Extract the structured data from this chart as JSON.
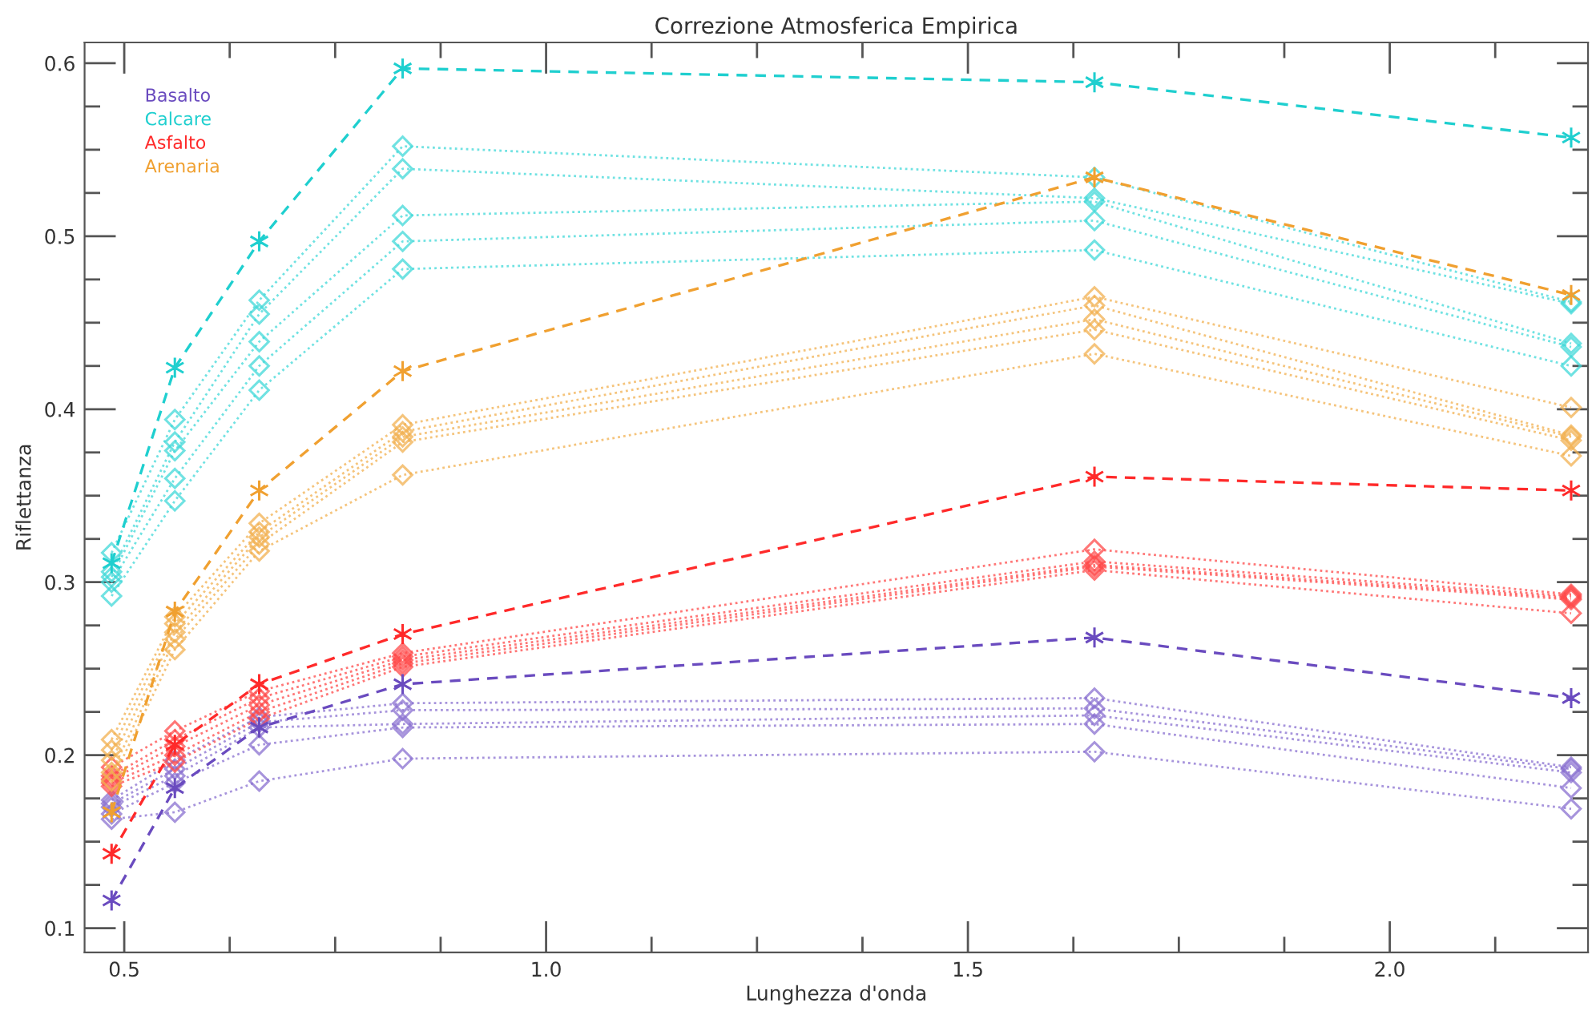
{
  "chart_data": {
    "type": "line",
    "title": "Correzione Atmosferica Empirica",
    "xlabel": "Lunghezza d'onda",
    "ylabel": "Riflettanza",
    "x": [
      0.485,
      0.56,
      0.66,
      0.83,
      1.65,
      2.215
    ],
    "xlim": [
      0.453,
      2.235
    ],
    "ylim": [
      0.086,
      0.612
    ],
    "xticks": [
      {
        "value": 0.5,
        "label": "0.5"
      },
      {
        "value": 0.625,
        "label": null
      },
      {
        "value": 0.75,
        "label": null
      },
      {
        "value": 0.875,
        "label": null
      },
      {
        "value": 1,
        "label": "1.0"
      },
      {
        "value": 1.125,
        "label": null
      },
      {
        "value": 1.25,
        "label": null
      },
      {
        "value": 1.375,
        "label": null
      },
      {
        "value": 1.5,
        "label": "1.5"
      },
      {
        "value": 1.625,
        "label": null
      },
      {
        "value": 1.75,
        "label": null
      },
      {
        "value": 1.875,
        "label": null
      },
      {
        "value": 2,
        "label": "2.0"
      },
      {
        "value": 2.125,
        "label": null
      }
    ],
    "yticks": [
      {
        "value": 0.1,
        "label": "0.1"
      },
      {
        "value": 0.125,
        "label": null
      },
      {
        "value": 0.15,
        "label": null
      },
      {
        "value": 0.175,
        "label": null
      },
      {
        "value": 0.2,
        "label": "0.2"
      },
      {
        "value": 0.225,
        "label": null
      },
      {
        "value": 0.25,
        "label": null
      },
      {
        "value": 0.275,
        "label": null
      },
      {
        "value": 0.3,
        "label": "0.3"
      },
      {
        "value": 0.325,
        "label": null
      },
      {
        "value": 0.35,
        "label": null
      },
      {
        "value": 0.375,
        "label": null
      },
      {
        "value": 0.4,
        "label": "0.4"
      },
      {
        "value": 0.425,
        "label": null
      },
      {
        "value": 0.45,
        "label": null
      },
      {
        "value": 0.475,
        "label": null
      },
      {
        "value": 0.5,
        "label": "0.5"
      },
      {
        "value": 0.525,
        "label": null
      },
      {
        "value": 0.55,
        "label": null
      },
      {
        "value": 0.575,
        "label": null
      },
      {
        "value": 0.6,
        "label": "0.6"
      }
    ],
    "grid": false,
    "legend": "top left",
    "series": [
      {
        "name": "Basalto",
        "color": "#6a4bbf",
        "marker": "cross",
        "line_style": "dashed",
        "values": [
          0.116,
          0.181,
          0.216,
          0.241,
          0.268,
          0.233
        ]
      },
      {
        "name": "Calcare",
        "color": "#1fcfcf",
        "marker": "cross",
        "line_style": "dashed",
        "values": [
          0.311,
          0.424,
          0.497,
          0.597,
          0.589,
          0.557
        ]
      },
      {
        "name": "Asfalto",
        "color": "#ff2a2a",
        "marker": "cross",
        "line_style": "dashed",
        "values": [
          0.143,
          0.206,
          0.241,
          0.27,
          0.361,
          0.353
        ]
      },
      {
        "name": "Arenaria",
        "color": "#f0a030",
        "marker": "cross",
        "line_style": "dashed",
        "values": [
          0.167,
          0.283,
          0.353,
          0.422,
          0.534,
          0.466
        ]
      },
      {
        "color": "#8a70d0",
        "marker": "diamond",
        "line_style": "dotted",
        "values": [
          0.174,
          0.197,
          0.222,
          0.23,
          0.233,
          0.193
        ]
      },
      {
        "color": "#8a70d0",
        "marker": "diamond",
        "line_style": "dotted",
        "values": [
          0.172,
          0.192,
          0.219,
          0.226,
          0.227,
          0.192
        ]
      },
      {
        "color": "#8a70d0",
        "marker": "diamond",
        "line_style": "dotted",
        "values": [
          0.17,
          0.188,
          0.216,
          0.218,
          0.223,
          0.19
        ]
      },
      {
        "color": "#8a70d0",
        "marker": "diamond",
        "line_style": "dotted",
        "values": [
          0.166,
          0.184,
          0.206,
          0.216,
          0.218,
          0.181
        ]
      },
      {
        "color": "#8a70d0",
        "marker": "diamond",
        "line_style": "dotted",
        "values": [
          0.163,
          0.167,
          0.185,
          0.198,
          0.202,
          0.169
        ]
      },
      {
        "color": "#40d8d8",
        "marker": "diamond",
        "line_style": "dotted",
        "values": [
          0.317,
          0.394,
          0.463,
          0.552,
          0.534,
          0.462
        ]
      },
      {
        "color": "#40d8d8",
        "marker": "diamond",
        "line_style": "dotted",
        "values": [
          0.306,
          0.381,
          0.455,
          0.539,
          0.522,
          0.461
        ]
      },
      {
        "color": "#40d8d8",
        "marker": "diamond",
        "line_style": "dotted",
        "values": [
          0.303,
          0.376,
          0.439,
          0.512,
          0.52,
          0.438
        ]
      },
      {
        "color": "#40d8d8",
        "marker": "diamond",
        "line_style": "dotted",
        "values": [
          0.3,
          0.36,
          0.425,
          0.497,
          0.509,
          0.436
        ]
      },
      {
        "color": "#40d8d8",
        "marker": "diamond",
        "line_style": "dotted",
        "values": [
          0.292,
          0.347,
          0.411,
          0.481,
          0.492,
          0.425
        ]
      },
      {
        "color": "#ff4a4a",
        "marker": "diamond",
        "line_style": "dotted",
        "values": [
          0.193,
          0.214,
          0.237,
          0.259,
          0.319,
          0.293
        ]
      },
      {
        "color": "#ff4a4a",
        "marker": "diamond",
        "line_style": "dotted",
        "values": [
          0.188,
          0.209,
          0.233,
          0.257,
          0.312,
          0.292
        ]
      },
      {
        "color": "#ff4a4a",
        "marker": "diamond",
        "line_style": "dotted",
        "values": [
          0.186,
          0.205,
          0.229,
          0.255,
          0.31,
          0.291
        ]
      },
      {
        "color": "#ff4a4a",
        "marker": "diamond",
        "line_style": "dotted",
        "values": [
          0.184,
          0.2,
          0.225,
          0.253,
          0.309,
          0.29
        ]
      },
      {
        "color": "#ff4a4a",
        "marker": "diamond",
        "line_style": "dotted",
        "values": [
          0.182,
          0.196,
          0.221,
          0.251,
          0.307,
          0.282
        ]
      },
      {
        "color": "#f2b050",
        "marker": "diamond",
        "line_style": "dotted",
        "values": [
          0.209,
          0.28,
          0.334,
          0.391,
          0.465,
          0.401
        ]
      },
      {
        "color": "#f2b050",
        "marker": "diamond",
        "line_style": "dotted",
        "values": [
          0.203,
          0.276,
          0.329,
          0.387,
          0.46,
          0.385
        ]
      },
      {
        "color": "#f2b050",
        "marker": "diamond",
        "line_style": "dotted",
        "values": [
          0.197,
          0.271,
          0.326,
          0.384,
          0.452,
          0.384
        ]
      },
      {
        "color": "#f2b050",
        "marker": "diamond",
        "line_style": "dotted",
        "values": [
          0.19,
          0.267,
          0.322,
          0.381,
          0.446,
          0.382
        ]
      },
      {
        "color": "#f2b050",
        "marker": "diamond",
        "line_style": "dotted",
        "values": [
          0.185,
          0.261,
          0.318,
          0.362,
          0.432,
          0.373
        ]
      }
    ]
  }
}
